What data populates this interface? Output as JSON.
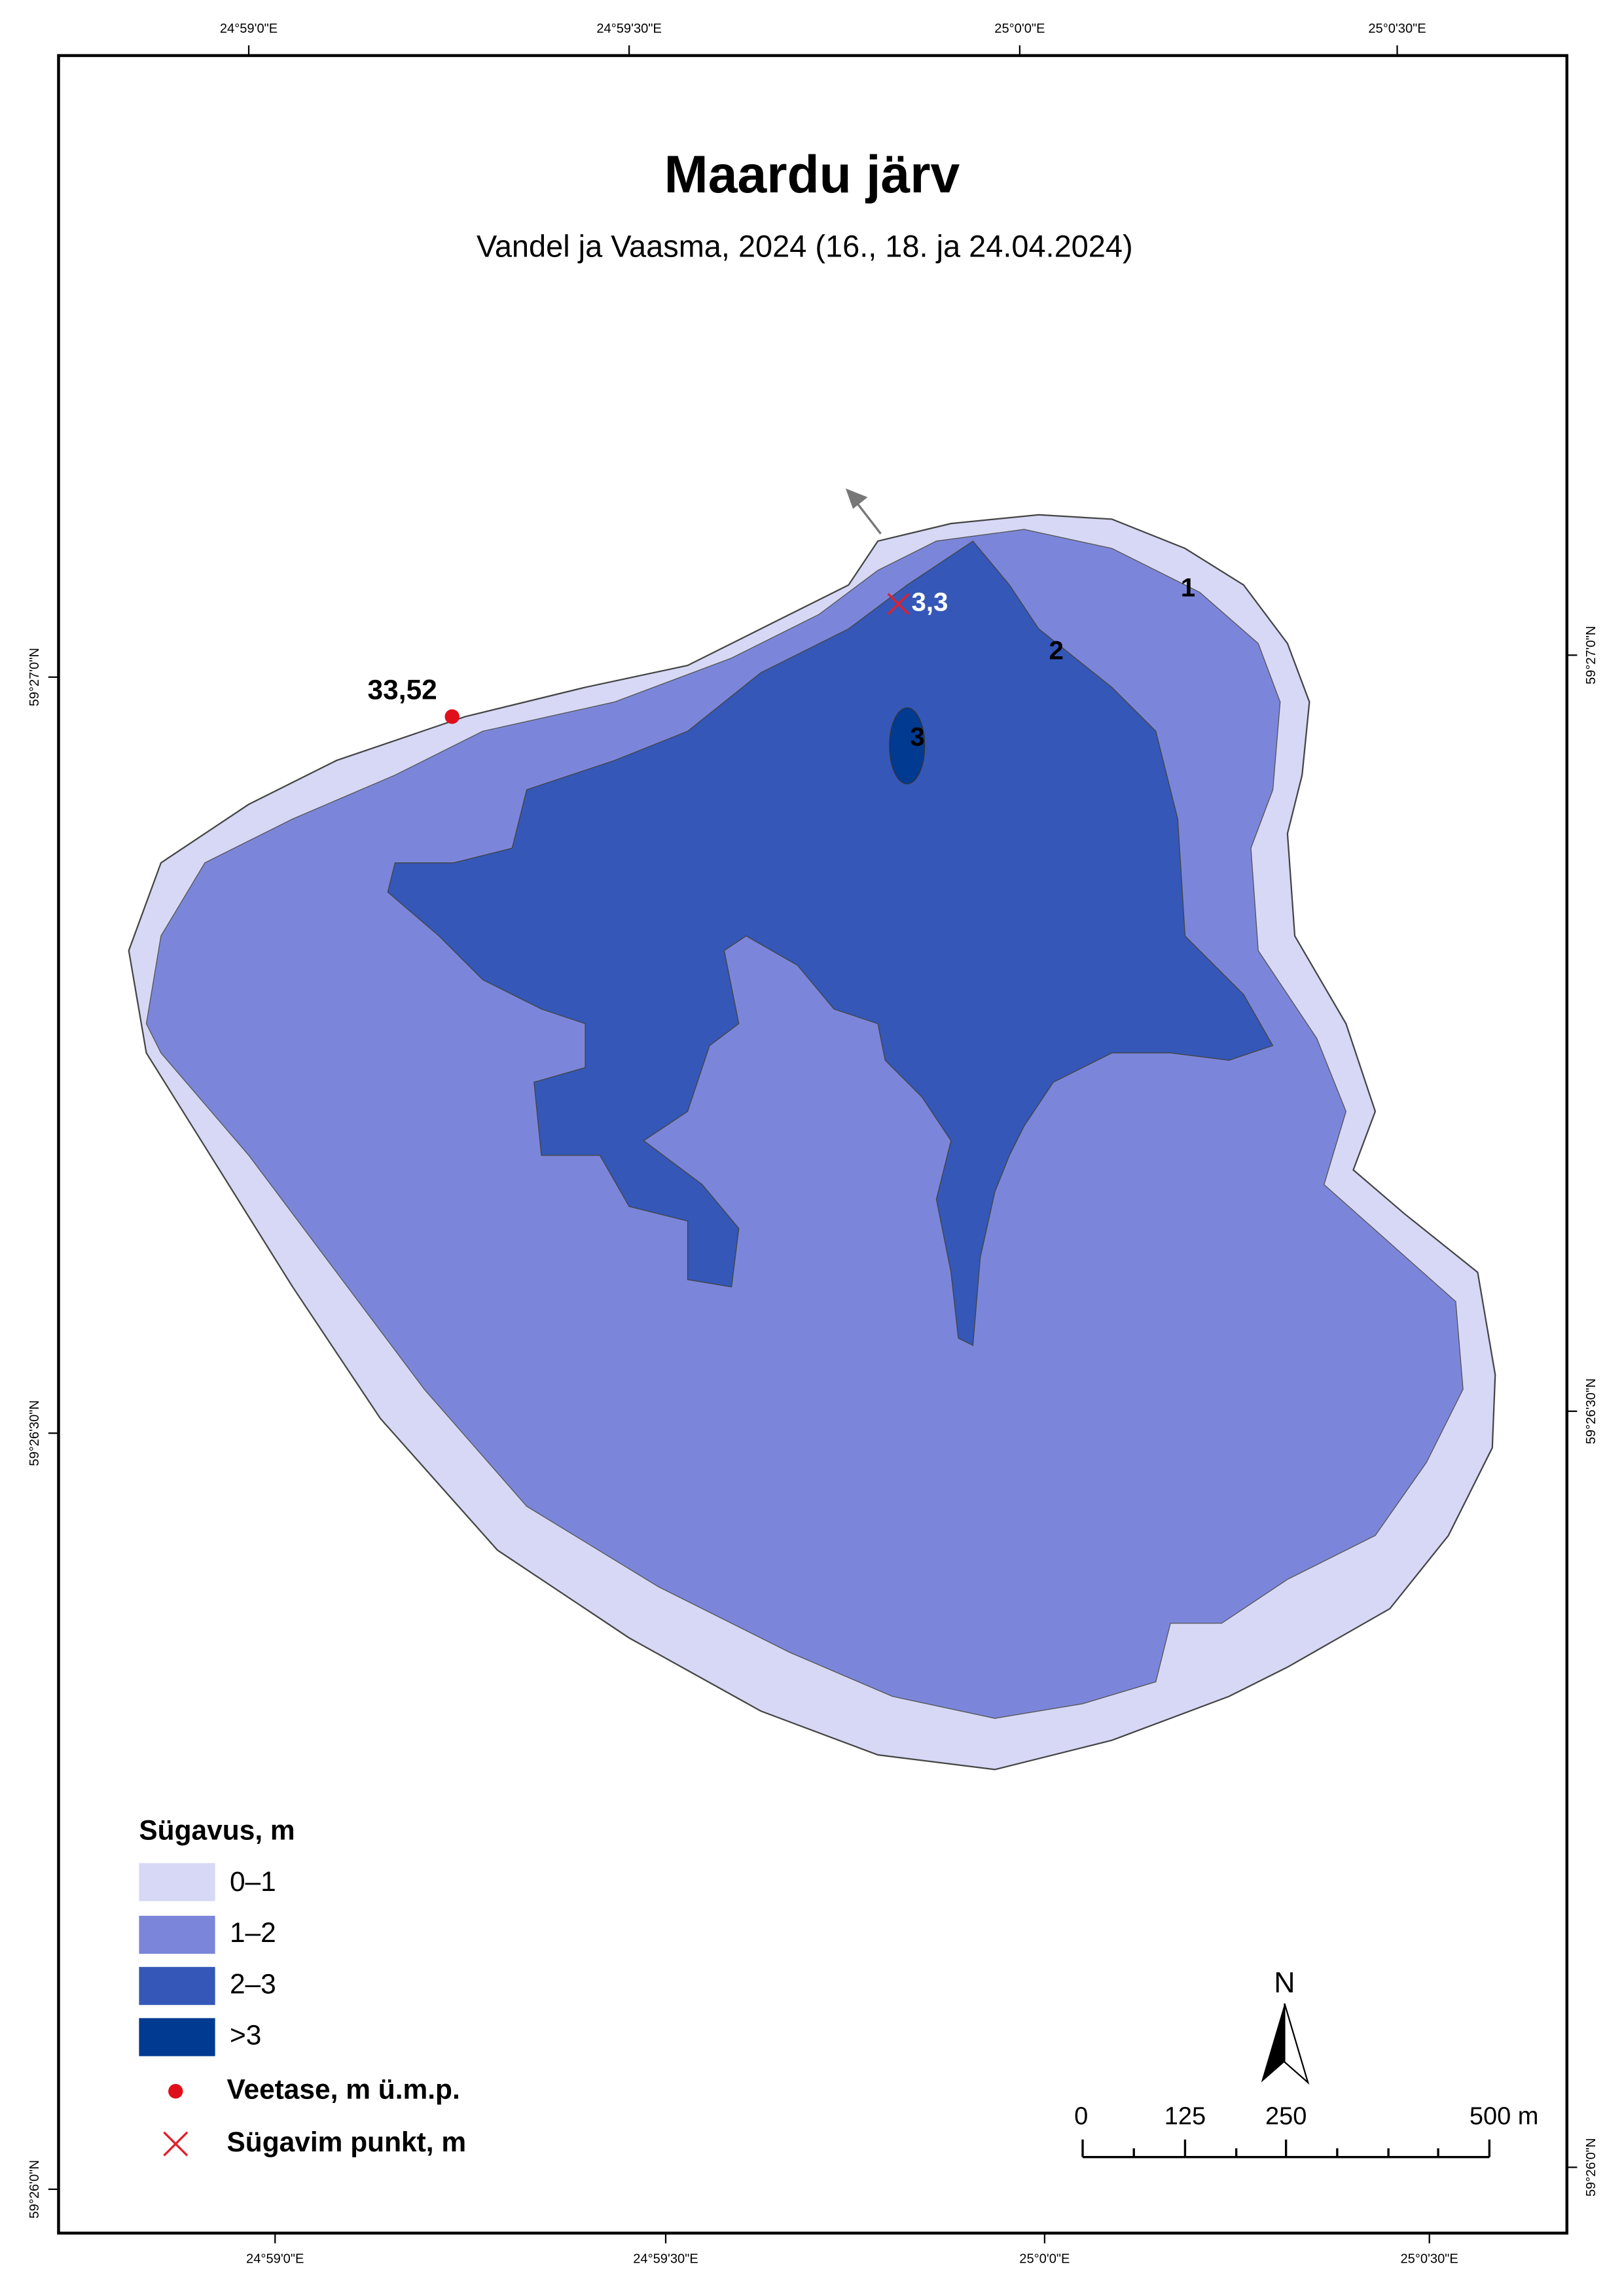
{
  "map": {
    "title": "Maardu järv",
    "subtitle": "Vandel ja Vaasma, 2024 (16., 18. ja 24.04.2024)",
    "coords_top": [
      "24°59'0\"E",
      "24°59'30\"E",
      "25°0'0\"E",
      "25°0'30\"E"
    ],
    "coords_bottom": [
      "24°59'0\"E",
      "24°59'30\"E",
      "25°0'0\"E",
      "25°0'30\"E"
    ],
    "coords_left": [
      "59°27'0\"N",
      "59°26'30\"N",
      "59°26'0\"N"
    ],
    "coords_right": [
      "59°27'0\"N",
      "59°26'30\"N",
      "59°26'0\"N"
    ],
    "depth_labels": [
      "1",
      "2",
      "3"
    ],
    "deepest_point": "3,3",
    "water_level": "33,52",
    "legend": {
      "title": "Sügavus, m",
      "classes": [
        "0–1",
        "1–2",
        "2–3",
        ">3"
      ],
      "water_level": "Veetase, m ü.m.p.",
      "deepest": "Sügavim punkt, m"
    },
    "north": "N",
    "scale": [
      "0",
      "125",
      "250",
      "500 m"
    ]
  }
}
